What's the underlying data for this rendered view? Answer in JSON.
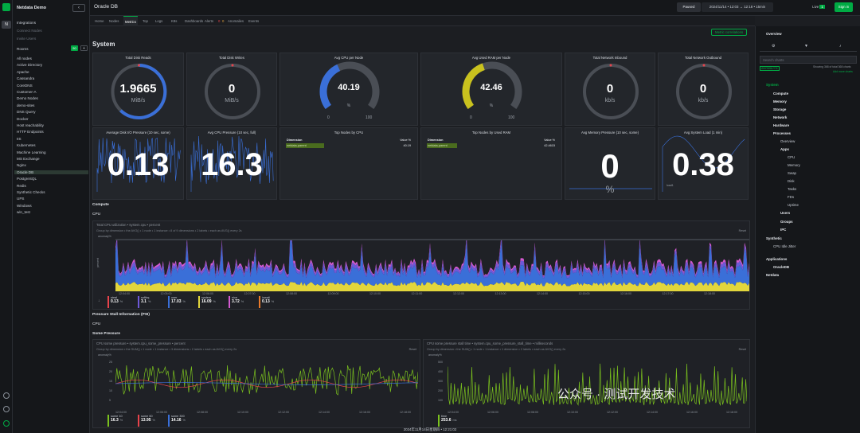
{
  "sidebar": {
    "space_name": "Netdata Demo",
    "top_items": [
      "Integrations",
      "Connect Nodes",
      "Invite Users"
    ],
    "rooms_label": "Rooms",
    "rooms_count": "50",
    "rooms": [
      "All nodes",
      "Active Directory",
      "Apache",
      "Cassandra",
      "CoreDNS",
      "Customer-A",
      "Demo Nodes",
      "demo-sites",
      "DNS Query",
      "Docker",
      "Host reachability",
      "HTTP Endpoints",
      "IIS",
      "Kubernetes",
      "Machine Learning",
      "MS Exchange",
      "Nginx",
      "Oracle DB",
      "PostgreSQL",
      "Redis",
      "Synthetic Checks",
      "UPS",
      "Windows",
      "win_test"
    ],
    "selected_room": "Oracle DB"
  },
  "topbar": {
    "room_title": "Oracle DB",
    "status": "Paused",
    "timerange": "2024/11/14 • 12:03 → 12:18 •",
    "duration": "15min",
    "live_label": "Live",
    "live_count": "1",
    "signin": "Sign in"
  },
  "tabs": [
    "Home",
    "Nodes",
    "Metrics",
    "Top",
    "Logs",
    "K8s",
    "Dashboards",
    "Alerts",
    "Anomalies",
    "Events"
  ],
  "alert_counts": [
    "0",
    "0"
  ],
  "main": {
    "metric_correlations": "Metric correlations",
    "title": "System",
    "gauges": [
      {
        "title": "Total Disk Reads",
        "value": "1.9665",
        "unit": "MiB/s"
      },
      {
        "title": "Total Disk Writes",
        "value": "0",
        "unit": "MiB/s"
      },
      {
        "title": "Avg CPU per Node",
        "value": "40.19",
        "unit": "%",
        "min": "0",
        "max": "100",
        "fill": 0.402
      },
      {
        "title": "Avg Used RAM per Node",
        "value": "42.46",
        "unit": "%",
        "min": "0",
        "max": "100",
        "fill": 0.425
      },
      {
        "title": "Total Network Inbound",
        "value": "0",
        "unit": "kb/s"
      },
      {
        "title": "Total Network Outbound",
        "value": "0",
        "unit": "kb/s"
      }
    ],
    "row2": [
      {
        "title": "Average Disk I/O Pressure (10 sec, some)",
        "value": "0.13"
      },
      {
        "title": "Avg CPU Pressure (10 sec, full)",
        "value": "16.3"
      },
      {
        "title": "Top Nodes by CPU",
        "col1": "Dimension",
        "col2": "Value %",
        "node": "netdata-parent",
        "val": "40.19"
      },
      {
        "title": "Top Nodes by Used RAM",
        "col1": "Dimension",
        "col2": "Value %",
        "node": "netdata-parent",
        "val": "42.4615"
      },
      {
        "title": "Avg Memory Pressure (10 sec, some)",
        "value": "0",
        "unit": "%"
      },
      {
        "title": "Avg System Load (1 min)",
        "value": "0.38",
        "unit": "load1"
      }
    ],
    "compute": "Compute",
    "cpu": "CPU",
    "cpu_chart": {
      "title": "Total CPU utilization • system.cpu • percent",
      "groupby": "Group by dimension • the AVG() • 1 node • 1 instance • 8 of 9 dimensions • 2 labels • each as AVG() every 2s",
      "reset": "Reset",
      "anomaly": "anomaly%",
      "ylabel": "percent",
      "xticks": [
        "12:04:00",
        "12:05:00",
        "12:06:00",
        "12:07:00",
        "12:08:00",
        "12:09:00",
        "12:10:00",
        "12:11:00",
        "12:12:00",
        "12:13:00",
        "12:14:00",
        "12:15:00",
        "12:16:00",
        "12:17:00",
        "12:18:00"
      ],
      "legend": [
        {
          "name": "steal",
          "val": "0.13",
          "color": "#e7434b"
        },
        {
          "name": "softirq",
          "val": "3.1",
          "color": "#6d59d8"
        },
        {
          "name": "user",
          "val": "17.03",
          "color": "#3a6fd8"
        },
        {
          "name": "system",
          "val": "16.09",
          "color": "#e2d63c"
        },
        {
          "name": "nice",
          "val": "3.72",
          "color": "#d45ad1"
        },
        {
          "name": "iowait",
          "val": "0.13",
          "color": "#e97a2a"
        }
      ],
      "unit": "%"
    },
    "psi": "Pressure Stall Information (PSI)",
    "cpu2": "CPU",
    "some_pressure": "Some Pressure",
    "pressure_chart": {
      "title": "CPU some pressure • system.cpu_some_pressure • percent",
      "groupby": "Group by dimension • the SUM() • 1 node • 1 instance • 3 dimensions • 2 labels • each as AVG() every 2s",
      "reset": "Reset",
      "anomaly": "anomaly%",
      "ylabel": "percent",
      "yticks": [
        "25",
        "20",
        "15",
        "10",
        "5"
      ],
      "xticks": [
        "12:04:00",
        "12:06:00",
        "12:08:00",
        "12:10:00",
        "12:12:00",
        "12:14:00",
        "12:16:00",
        "12:18:00"
      ],
      "legend": [
        {
          "name": "some 10",
          "val": "16.3",
          "color": "#7bc21e"
        },
        {
          "name": "some 60",
          "val": "13.95",
          "color": "#e7434b"
        },
        {
          "name": "some 300",
          "val": "14.16",
          "color": "#3a6fd8"
        }
      ],
      "unit": "%"
    },
    "stall_chart": {
      "title": "CPU some pressure stall time • system.cpu_some_pressure_stall_time • milliseconds",
      "groupby": "Group by dimension • the SUM() • 1 node • 1 instance • 1 dimension • 2 labels • each as AVG() every 2s",
      "reset": "Reset",
      "anomaly": "anomaly%",
      "ylabel": "milliseconds",
      "yticks": [
        "500",
        "400",
        "300",
        "200",
        "100"
      ],
      "xticks": [
        "12:04:00",
        "12:06:00",
        "12:08:00",
        "12:10:00",
        "12:12:00",
        "12:14:00",
        "12:16:00",
        "12:18:00"
      ],
      "legend": [
        {
          "name": "time",
          "val": "253.6",
          "color": "#7bc21e"
        }
      ],
      "unit": "ms"
    },
    "bottom_time": "2024年11月14日星期四 • 12:21:02"
  },
  "right_panel": {
    "title": "Overview",
    "search_placeholder": "Search charts",
    "anomaly_tag": "ANOMALY%",
    "showing": "Showing 368 of total 368 charts",
    "add_more": "Add more charts",
    "tree": [
      {
        "label": "System",
        "cls": "g",
        "indent": 0
      },
      {
        "label": "Compute",
        "cls": "b",
        "indent": 1
      },
      {
        "label": "Memory",
        "cls": "b",
        "indent": 1
      },
      {
        "label": "Storage",
        "cls": "b",
        "indent": 1
      },
      {
        "label": "Network",
        "cls": "b",
        "indent": 1
      },
      {
        "label": "Hardware",
        "cls": "b",
        "indent": 1
      },
      {
        "label": "Processes",
        "cls": "b",
        "indent": 1
      },
      {
        "label": "Overview",
        "cls": "",
        "indent": 2
      },
      {
        "label": "Apps",
        "cls": "b",
        "indent": 2
      },
      {
        "label": "CPU",
        "cls": "",
        "indent": 3
      },
      {
        "label": "Memory",
        "cls": "",
        "indent": 3
      },
      {
        "label": "Swap",
        "cls": "",
        "indent": 3
      },
      {
        "label": "Disk",
        "cls": "",
        "indent": 3
      },
      {
        "label": "Tasks",
        "cls": "",
        "indent": 3
      },
      {
        "label": "FDs",
        "cls": "",
        "indent": 3
      },
      {
        "label": "Uptime",
        "cls": "",
        "indent": 3
      },
      {
        "label": "Users",
        "cls": "b",
        "indent": 2
      },
      {
        "label": "Groups",
        "cls": "b",
        "indent": 2
      },
      {
        "label": "IPC",
        "cls": "b",
        "indent": 2
      },
      {
        "label": "Synthetic",
        "cls": "b",
        "indent": 0
      },
      {
        "label": "CPU Idle Jitter",
        "cls": "",
        "indent": 1
      },
      {
        "label": "Applications",
        "cls": "b",
        "indent": 0
      },
      {
        "label": "OracleDB",
        "cls": "b",
        "indent": 1
      },
      {
        "label": "Netdata",
        "cls": "b",
        "indent": 0
      }
    ]
  },
  "watermark": "公众号 · 测试开发技术"
}
